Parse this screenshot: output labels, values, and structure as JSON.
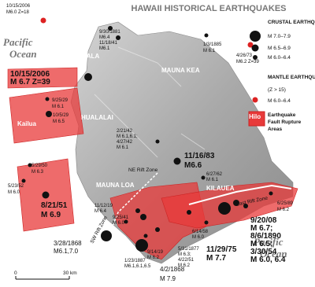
{
  "title": "HAWAII HISTORICAL EARTHQUAKES",
  "legend": {
    "crustal_title": "CRUSTAL EARTHQUAKES",
    "crustal_classes": [
      "M 7.0–7.9",
      "M 6.5–6.9",
      "M 6.0–6.4"
    ],
    "mantle_title": "MANTLE EARTHQUAKES",
    "mantle_depth": "(Z > 15)",
    "mantle_class": "M 6.0–6.4",
    "rupture_lines": [
      "Earthquake",
      "Fault Rupture",
      "Areas"
    ]
  },
  "ocean_labels": [
    [
      "Pacific",
      "Ocean"
    ],
    [
      "Pacific",
      "Ocean"
    ]
  ],
  "places": [
    "KOHALA",
    "MAUNA KEA",
    "HUALALAI",
    "MAUNA LOA",
    "KILAUEA",
    "Hilo",
    "Kailua"
  ],
  "rift_zones": [
    "NE Rift Zone",
    "SW Rift Zone",
    "East Rift Zone"
  ],
  "scale": [
    "0",
    "30 km"
  ],
  "events": [
    {
      "lines": [
        "10/15/2006",
        "M6.0  Z=18"
      ]
    },
    {
      "lines": [
        "9/30/1881",
        "M6.4",
        "11/18/41",
        "M6.1"
      ]
    },
    {
      "lines": [
        "1/3/1885",
        "M 6.1"
      ]
    },
    {
      "lines": [
        "4/26/73",
        "M6.2  Z=39"
      ]
    },
    {
      "lines": [
        "10/15/2006",
        "M 6.7  Z=39"
      ]
    },
    {
      "lines": [
        "9/25/29",
        "M 6.1"
      ]
    },
    {
      "lines": [
        "10/5/29",
        "M 6.5"
      ]
    },
    {
      "lines": [
        "5/29/50",
        "M 6.3"
      ]
    },
    {
      "lines": [
        "5/23/52",
        "M 6.0"
      ]
    },
    {
      "lines": [
        "8/21/51",
        "M 6.9"
      ]
    },
    {
      "lines": [
        "2/21/42",
        "M 6.1,6.1;",
        "4/27/42",
        "M 6.1"
      ]
    },
    {
      "lines": [
        "11/16/83",
        "M6.6"
      ]
    },
    {
      "lines": [
        "6/27/62",
        "M 6.1"
      ]
    },
    {
      "lines": [
        "11/12/19",
        "M 6.4"
      ]
    },
    {
      "lines": [
        "9/25/41",
        "M 6.0"
      ]
    },
    {
      "lines": [
        "1/23/1887",
        "M6.1,6.1,6.5"
      ]
    },
    {
      "lines": [
        "9/14/19",
        "M 6.2"
      ]
    },
    {
      "lines": [
        "3/28/1868",
        "M6.1,7.0"
      ]
    },
    {
      "lines": [
        "4/2/1868",
        "M 7.9"
      ]
    },
    {
      "lines": [
        "5/31/1877",
        "M 6.3;",
        "4/22/51",
        "M 6.2"
      ]
    },
    {
      "lines": [
        "6/14/58",
        "M 6.0"
      ]
    },
    {
      "lines": [
        "11/29/75",
        "M 7.7"
      ]
    },
    {
      "lines": [
        "9/20/08",
        "M 6.7;",
        "8/6/1890",
        "M 6.5;",
        "3/30/54",
        "M 6.0, 6.4"
      ]
    },
    {
      "lines": [
        "6/25/89",
        "M 6.2"
      ]
    }
  ]
}
